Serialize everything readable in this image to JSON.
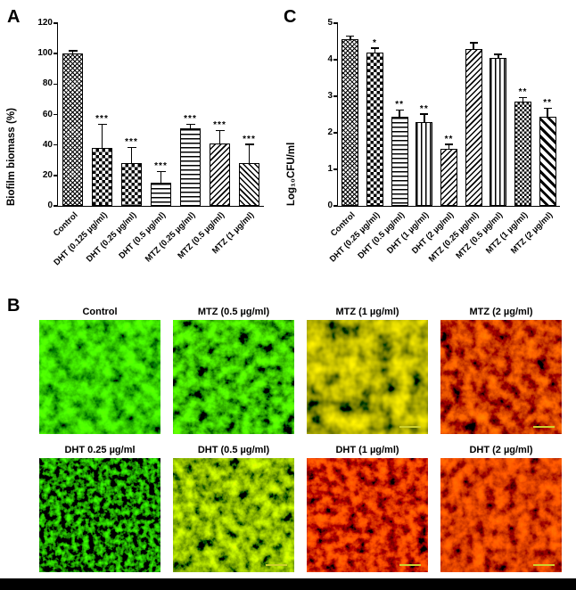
{
  "figure": {
    "panels": {
      "a": {
        "letter": "A"
      },
      "b": {
        "letter": "B"
      },
      "c": {
        "letter": "C"
      }
    }
  },
  "chart_data": [
    {
      "id": "A",
      "type": "bar",
      "title": "",
      "xlabel": "",
      "ylabel": "Biofilm biomass (%)",
      "ylim": [
        0,
        120
      ],
      "yticks": [
        0,
        20,
        40,
        60,
        80,
        100,
        120
      ],
      "categories": [
        "Control",
        "DHT (0.125 µg/ml)",
        "DHT (0.25 µg/ml)",
        "DHT (0.5 µg/ml)",
        "MTZ (0.25 µg/ml)",
        "MTZ (0.5 µg/ml)",
        "MTZ (1 µg/ml)"
      ],
      "values": [
        100,
        38,
        28,
        15,
        51,
        41,
        28
      ],
      "errors": [
        1.5,
        15,
        10,
        7,
        2,
        8,
        12
      ],
      "sig": [
        "",
        "***",
        "***",
        "***",
        "***",
        "***",
        "***"
      ],
      "patterns": [
        "crosshatch",
        "checker",
        "checker",
        "hlines",
        "hlines",
        "diag-up",
        "diag-down"
      ],
      "grid": false,
      "legend": "none"
    },
    {
      "id": "C",
      "type": "bar",
      "title": "",
      "xlabel": "",
      "ylabel": "Log₁₀CFU/ml",
      "ylim": [
        0,
        5
      ],
      "yticks": [
        0,
        1,
        2,
        3,
        4,
        5
      ],
      "categories": [
        "Control",
        "DHT (0.25 µg/ml)",
        "DHT (0.5 µg/ml)",
        "DHT (1 µg/ml)",
        "DHT (2 µg/ml)",
        "MTZ (0.25 µg/ml)",
        "MTZ (0.5 µg/ml)",
        "MTZ (1 µg/ml)",
        "MTZ (2 µg/ml)"
      ],
      "values": [
        4.55,
        4.2,
        2.45,
        2.3,
        1.55,
        4.3,
        4.05,
        2.85,
        2.45
      ],
      "errors": [
        0.08,
        0.1,
        0.15,
        0.2,
        0.12,
        0.15,
        0.08,
        0.1,
        0.2
      ],
      "sig": [
        "",
        "*",
        "**",
        "**",
        "**",
        "",
        "",
        "**",
        "**"
      ],
      "patterns": [
        "crosshatch",
        "checker",
        "hlines",
        "vlines",
        "diag-up",
        "diag-up",
        "vlines",
        "checker-fine",
        "diag-down-thick"
      ],
      "grid": false,
      "legend": "none"
    }
  ],
  "microscopy": {
    "scalebar_color": "#cdd12e",
    "rows": [
      {
        "tiles": [
          {
            "label": "Control",
            "appearance": "dense live green biofilm, scattered black voids",
            "seed": 7,
            "freq": 0.07,
            "oct": 4,
            "r": [
              0.2,
              -0.06
            ],
            "g": [
              2.2,
              -0.45
            ],
            "scalebar": false
          },
          {
            "label": "MTZ (0.5 µg/ml)",
            "appearance": "green biofilm, larger black voids",
            "seed": 11,
            "freq": 0.08,
            "oct": 4,
            "r": [
              0.25,
              -0.08
            ],
            "g": [
              2.3,
              -0.6
            ],
            "scalebar": false
          },
          {
            "label": "MTZ (1 µg/ml)",
            "appearance": "mixed yellow/red biofilm with large black patch",
            "seed": 23,
            "freq": 0.05,
            "oct": 3,
            "r": [
              1.8,
              -0.45
            ],
            "g": [
              1.5,
              -0.32
            ],
            "scalebar": true
          },
          {
            "label": "MTZ (2 µg/ml)",
            "appearance": "dead red biofilm with black patches",
            "seed": 31,
            "freq": 0.07,
            "oct": 4,
            "r": [
              2.2,
              -0.5
            ],
            "g": [
              0.45,
              -0.18
            ],
            "scalebar": true
          }
        ]
      },
      {
        "tiles": [
          {
            "label": "DHT 0.25 µg/ml",
            "appearance": "sparse green clusters on black",
            "seed": 41,
            "freq": 0.16,
            "oct": 3,
            "r": [
              0.1,
              -0.04
            ],
            "g": [
              2.5,
              -1.0
            ],
            "scalebar": false
          },
          {
            "label": "DHT (0.5 µg/ml)",
            "appearance": "yellow-green biofilm with black voids",
            "seed": 47,
            "freq": 0.08,
            "oct": 4,
            "r": [
              1.4,
              -0.42
            ],
            "g": [
              2.0,
              -0.5
            ],
            "scalebar": true
          },
          {
            "label": "DHT (1 µg/ml)",
            "appearance": "bright red biofilm with black voids",
            "seed": 53,
            "freq": 0.09,
            "oct": 4,
            "r": [
              2.3,
              -0.5
            ],
            "g": [
              0.35,
              -0.15
            ],
            "scalebar": true
          },
          {
            "label": "DHT (2 µg/ml)",
            "appearance": "dense dead red biofilm",
            "seed": 59,
            "freq": 0.08,
            "oct": 4,
            "r": [
              2.0,
              -0.3
            ],
            "g": [
              0.3,
              -0.1
            ],
            "scalebar": true
          }
        ]
      }
    ]
  }
}
